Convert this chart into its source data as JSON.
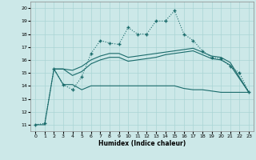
{
  "xlabel": "Humidex (Indice chaleur)",
  "xlim": [
    -0.5,
    23.5
  ],
  "ylim": [
    10.5,
    20.5
  ],
  "yticks": [
    11,
    12,
    13,
    14,
    15,
    16,
    17,
    18,
    19,
    20
  ],
  "xticks": [
    0,
    1,
    2,
    3,
    4,
    5,
    6,
    7,
    8,
    9,
    10,
    11,
    12,
    13,
    14,
    15,
    16,
    17,
    18,
    19,
    20,
    21,
    22,
    23
  ],
  "bg_color": "#cce8e8",
  "grid_color": "#aad4d4",
  "line_color": "#1a6b6b",
  "dot_line_x": [
    0,
    1,
    2,
    3,
    4,
    5,
    6,
    7,
    8,
    9,
    10,
    11,
    12,
    13,
    14,
    15,
    16,
    17,
    18,
    19,
    20,
    21,
    22,
    23
  ],
  "dot_line_y": [
    11,
    11.1,
    15.3,
    14.1,
    13.7,
    14.7,
    16.5,
    17.5,
    17.3,
    17.2,
    18.5,
    18.0,
    18.0,
    19.0,
    19.0,
    19.8,
    18.0,
    17.5,
    16.7,
    16.2,
    16.1,
    15.5,
    15.0,
    13.5
  ],
  "mid_line1_x": [
    2,
    3,
    4,
    5,
    6,
    7,
    8,
    9,
    10,
    11,
    12,
    13,
    14,
    15,
    16,
    17,
    18,
    19,
    20,
    21,
    23
  ],
  "mid_line1_y": [
    15.3,
    15.3,
    15.2,
    15.5,
    16.0,
    16.3,
    16.5,
    16.5,
    16.2,
    16.3,
    16.4,
    16.5,
    16.6,
    16.7,
    16.8,
    16.9,
    16.6,
    16.3,
    16.2,
    15.8,
    13.5
  ],
  "mid_line2_x": [
    2,
    3,
    4,
    5,
    6,
    7,
    8,
    9,
    10,
    11,
    12,
    13,
    14,
    15,
    16,
    17,
    18,
    19,
    20,
    21,
    23
  ],
  "mid_line2_y": [
    15.3,
    15.3,
    14.8,
    15.1,
    15.7,
    16.0,
    16.2,
    16.2,
    15.9,
    16.0,
    16.1,
    16.2,
    16.4,
    16.5,
    16.6,
    16.7,
    16.4,
    16.1,
    16.0,
    15.6,
    13.5
  ],
  "bot_line_x": [
    0,
    1,
    2,
    3,
    4,
    5,
    6,
    7,
    8,
    9,
    10,
    11,
    12,
    13,
    14,
    15,
    16,
    17,
    18,
    19,
    20,
    21,
    23
  ],
  "bot_line_y": [
    11,
    11,
    15.3,
    14.1,
    14.1,
    13.7,
    14.0,
    14.0,
    14.0,
    14.0,
    14.0,
    14.0,
    14.0,
    14.0,
    14.0,
    14.0,
    13.8,
    13.7,
    13.7,
    13.6,
    13.5,
    13.5,
    13.5
  ]
}
